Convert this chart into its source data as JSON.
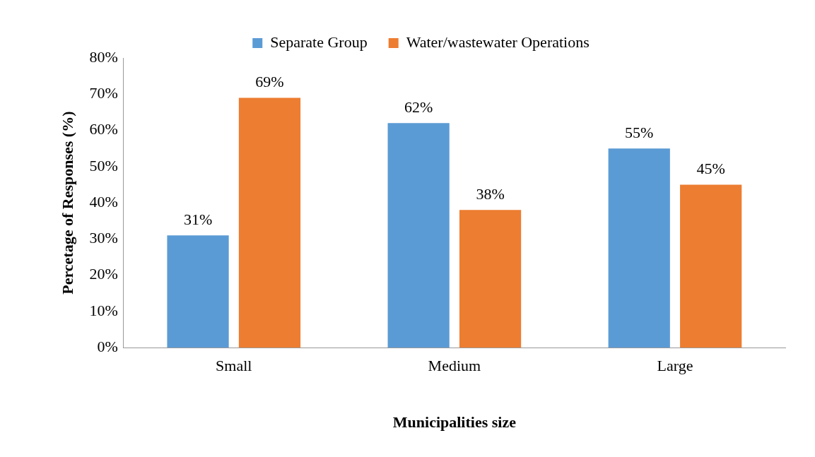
{
  "chart_data": {
    "type": "bar",
    "xlabel": "Municipalities size",
    "ylabel": "Percetage of Responses (%)",
    "categories": [
      "Small",
      "Medium",
      "Large"
    ],
    "series": [
      {
        "name": "Separate Group",
        "color": "#5b9bd5",
        "values": [
          31,
          62,
          55
        ],
        "value_labels": [
          "31%",
          "62%",
          "55%"
        ]
      },
      {
        "name": "Water/wastewater Operations",
        "color": "#ed7d31",
        "values": [
          69,
          38,
          45
        ],
        "value_labels": [
          "69%",
          "38%",
          "45%"
        ]
      }
    ],
    "ylim": [
      0,
      80
    ],
    "yticks": [
      {
        "value": 0,
        "label": "0%"
      },
      {
        "value": 10,
        "label": "10%"
      },
      {
        "value": 20,
        "label": "20%"
      },
      {
        "value": 30,
        "label": "30%"
      },
      {
        "value": 40,
        "label": "40%"
      },
      {
        "value": 50,
        "label": "50%"
      },
      {
        "value": 60,
        "label": "60%"
      },
      {
        "value": 70,
        "label": "70%"
      },
      {
        "value": 80,
        "label": "80%"
      }
    ],
    "grid": false,
    "legend": "top"
  }
}
